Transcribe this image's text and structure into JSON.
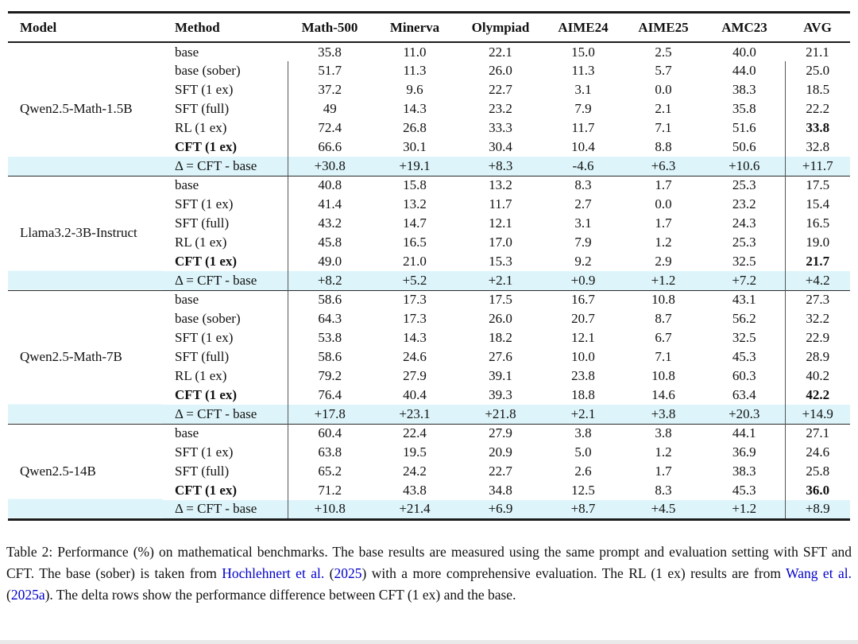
{
  "colors": {
    "delta_row_highlight": "#ddf5fa",
    "citation_link": "#0000cc",
    "horizontal_rule": "#1c1c1c",
    "vertical_rule": "#555555"
  },
  "table": {
    "columns": [
      {
        "label": "Model",
        "align": "left"
      },
      {
        "label": "Method",
        "align": "left"
      },
      {
        "label": "Math-500",
        "align": "center"
      },
      {
        "label": "Minerva",
        "align": "center"
      },
      {
        "label": "Olympiad",
        "align": "center"
      },
      {
        "label": "AIME24",
        "align": "center"
      },
      {
        "label": "AIME25",
        "align": "center"
      },
      {
        "label": "AMC23",
        "align": "center"
      },
      {
        "label": "AVG",
        "align": "center"
      }
    ],
    "groups": [
      {
        "model": "Qwen2.5-Math-1.5B",
        "rows": [
          {
            "method": "base",
            "no_vrule": true,
            "values": [
              "35.8",
              "11.0",
              "22.1",
              "15.0",
              "2.5",
              "40.0",
              "21.1"
            ]
          },
          {
            "method": "base (sober)",
            "values": [
              "51.7",
              "11.3",
              "26.0",
              "11.3",
              "5.7",
              "44.0",
              "25.0"
            ]
          },
          {
            "method": "SFT (1 ex)",
            "values": [
              "37.2",
              "9.6",
              "22.7",
              "3.1",
              "0.0",
              "38.3",
              "18.5"
            ]
          },
          {
            "method": "SFT (full)",
            "values": [
              "49",
              "14.3",
              "23.2",
              "7.9",
              "2.1",
              "35.8",
              "22.2"
            ]
          },
          {
            "method": "RL (1 ex)",
            "bold_avg": true,
            "values": [
              "72.4",
              "26.8",
              "33.3",
              "11.7",
              "7.1",
              "51.6",
              "33.8"
            ]
          },
          {
            "method": "CFT (1 ex)",
            "bold_method": true,
            "values": [
              "66.6",
              "30.1",
              "30.4",
              "10.4",
              "8.8",
              "50.6",
              "32.8"
            ]
          },
          {
            "method": "Δ = CFT - base",
            "delta": true,
            "values": [
              "+30.8",
              "+19.1",
              "+8.3",
              "-4.6",
              "+6.3",
              "+10.6",
              "+11.7"
            ]
          }
        ]
      },
      {
        "model": "Llama3.2-3B-Instruct",
        "rows": [
          {
            "method": "base",
            "values": [
              "40.8",
              "15.8",
              "13.2",
              "8.3",
              "1.7",
              "25.3",
              "17.5"
            ]
          },
          {
            "method": "SFT (1 ex)",
            "values": [
              "41.4",
              "13.2",
              "11.7",
              "2.7",
              "0.0",
              "23.2",
              "15.4"
            ]
          },
          {
            "method": "SFT (full)",
            "values": [
              "43.2",
              "14.7",
              "12.1",
              "3.1",
              "1.7",
              "24.3",
              "16.5"
            ]
          },
          {
            "method": "RL (1 ex)",
            "values": [
              "45.8",
              "16.5",
              "17.0",
              "7.9",
              "1.2",
              "25.3",
              "19.0"
            ]
          },
          {
            "method": "CFT (1 ex)",
            "bold_method": true,
            "bold_avg": true,
            "values": [
              "49.0",
              "21.0",
              "15.3",
              "9.2",
              "2.9",
              "32.5",
              "21.7"
            ]
          },
          {
            "method": "Δ = CFT - base",
            "delta": true,
            "values": [
              "+8.2",
              "+5.2",
              "+2.1",
              "+0.9",
              "+1.2",
              "+7.2",
              "+4.2"
            ]
          }
        ]
      },
      {
        "model": "Qwen2.5-Math-7B",
        "rows": [
          {
            "method": "base",
            "values": [
              "58.6",
              "17.3",
              "17.5",
              "16.7",
              "10.8",
              "43.1",
              "27.3"
            ]
          },
          {
            "method": "base (sober)",
            "values": [
              "64.3",
              "17.3",
              "26.0",
              "20.7",
              "8.7",
              "56.2",
              "32.2"
            ]
          },
          {
            "method": "SFT (1 ex)",
            "values": [
              "53.8",
              "14.3",
              "18.2",
              "12.1",
              "6.7",
              "32.5",
              "22.9"
            ]
          },
          {
            "method": "SFT (full)",
            "values": [
              "58.6",
              "24.6",
              "27.6",
              "10.0",
              "7.1",
              "45.3",
              "28.9"
            ]
          },
          {
            "method": "RL (1 ex)",
            "values": [
              "79.2",
              "27.9",
              "39.1",
              "23.8",
              "10.8",
              "60.3",
              "40.2"
            ]
          },
          {
            "method": "CFT (1 ex)",
            "bold_method": true,
            "bold_avg": true,
            "values": [
              "76.4",
              "40.4",
              "39.3",
              "18.8",
              "14.6",
              "63.4",
              "42.2"
            ]
          },
          {
            "method": "Δ = CFT - base",
            "delta": true,
            "values": [
              "+17.8",
              "+23.1",
              "+21.8",
              "+2.1",
              "+3.8",
              "+20.3",
              "+14.9"
            ]
          }
        ]
      },
      {
        "model": "Qwen2.5-14B",
        "rows": [
          {
            "method": "base",
            "values": [
              "60.4",
              "22.4",
              "27.9",
              "3.8",
              "3.8",
              "44.1",
              "27.1"
            ]
          },
          {
            "method": "SFT (1 ex)",
            "values": [
              "63.8",
              "19.5",
              "20.9",
              "5.0",
              "1.2",
              "36.9",
              "24.6"
            ]
          },
          {
            "method": "SFT (full)",
            "values": [
              "65.2",
              "24.2",
              "22.7",
              "2.6",
              "1.7",
              "38.3",
              "25.8"
            ]
          },
          {
            "method": "CFT (1 ex)",
            "bold_method": true,
            "bold_avg": true,
            "values": [
              "71.2",
              "43.8",
              "34.8",
              "12.5",
              "8.3",
              "45.3",
              "36.0"
            ]
          },
          {
            "method": "Δ = CFT - base",
            "delta": true,
            "values": [
              "+10.8",
              "+21.4",
              "+6.9",
              "+8.7",
              "+4.5",
              "+1.2",
              "+8.9"
            ]
          }
        ]
      }
    ]
  },
  "caption": {
    "segments": [
      {
        "text": "Table 2: Performance (%) on mathematical benchmarks. The base results are measured using the same prompt and evaluation setting with SFT and CFT. The base (sober) is taken from ",
        "link": false
      },
      {
        "text": "Hochlehnert et al.",
        "link": true
      },
      {
        "text": " (",
        "link": false
      },
      {
        "text": "2025",
        "link": true
      },
      {
        "text": ") with a more comprehensive evaluation. The RL (1 ex) results are from ",
        "link": false
      },
      {
        "text": "Wang et al.",
        "link": true
      },
      {
        "text": " (",
        "link": false
      },
      {
        "text": "2025a",
        "link": true
      },
      {
        "text": "). The delta rows show the performance difference between CFT (1 ex) and the base.",
        "link": false
      }
    ]
  }
}
